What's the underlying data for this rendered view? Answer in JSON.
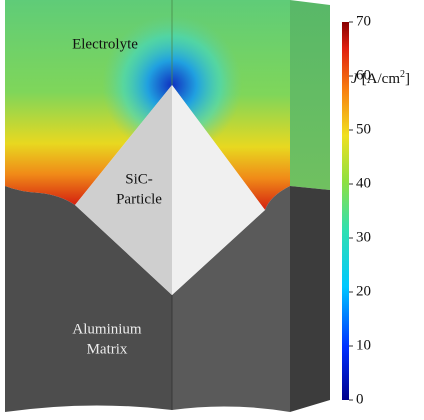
{
  "labels": {
    "electrolyte": "Electrolyte",
    "particle": [
      "SiC-",
      "Particle"
    ],
    "matrix": [
      "Aluminium",
      "Matrix"
    ]
  },
  "colorbar": {
    "symbol": "J",
    "unit": "[A/cm",
    "exponent": "2",
    "close": "]",
    "lim": [
      0,
      70
    ],
    "ticks": [
      0,
      10,
      20,
      30,
      40,
      50,
      60,
      70
    ]
  }
}
